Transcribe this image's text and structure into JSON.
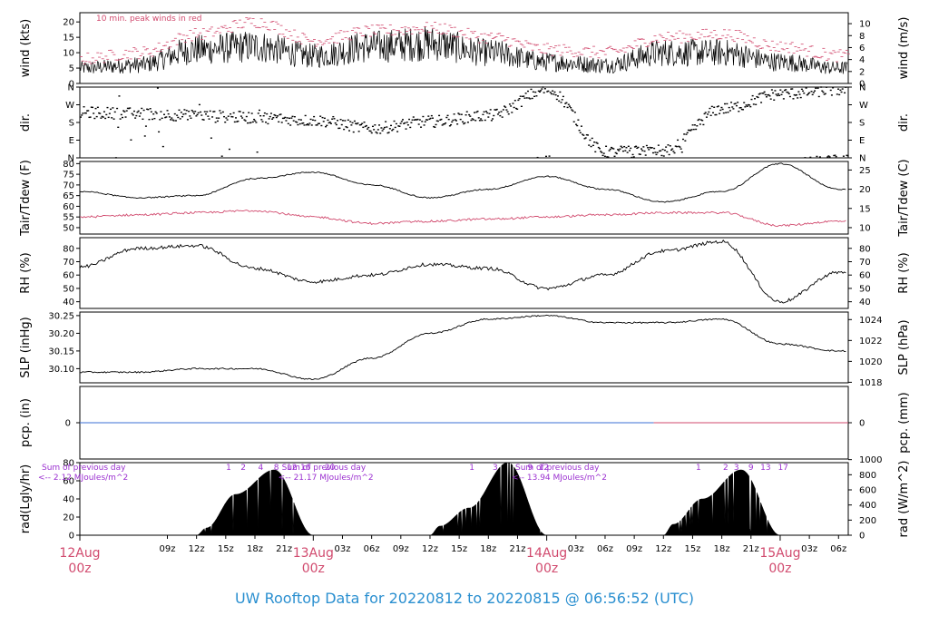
{
  "footer_title": "UW Rooftop Data for 20220812  to  20220815 @ 06:56:52  (UTC)",
  "colors": {
    "peak": "#d14a6e",
    "dew": "#d14a6e",
    "pcp": "#3b6fd6",
    "footer": "#2a8fd0",
    "annot": "#9b30d0"
  },
  "chart_data": [
    {
      "type": "line",
      "panel": "wind",
      "ylabel_left": "wind (kts)",
      "ylabel_right": "wind (m/s)",
      "annotation": "10 min. peak winds in red",
      "ylim": [
        0,
        23
      ],
      "yticks_left": [
        0,
        5,
        10,
        15,
        20
      ],
      "yticks_right": [
        0,
        2,
        4,
        6,
        8,
        10
      ],
      "x_hours": [
        0,
        6,
        12,
        18,
        24,
        30,
        36,
        42,
        48,
        54,
        60,
        66,
        72,
        78
      ],
      "series": [
        {
          "role": "wind",
          "values": [
            5,
            6,
            11,
            12,
            9,
            12,
            13,
            10,
            7,
            6,
            10,
            10,
            7,
            5
          ]
        },
        {
          "role": "peak",
          "values": [
            8,
            10,
            16,
            20,
            14,
            17,
            18,
            15,
            11,
            10,
            15,
            16,
            12,
            9
          ]
        }
      ]
    },
    {
      "type": "scatter",
      "panel": "dir",
      "ylabel_left": "dir.",
      "ylabel_right": "dir.",
      "ytick_labels": [
        "N",
        "E",
        "S",
        "W",
        "N"
      ],
      "x_hours": [
        0,
        6,
        12,
        18,
        24,
        30,
        36,
        42,
        48,
        54,
        60,
        66,
        72,
        78
      ],
      "values": [
        230,
        225,
        215,
        205,
        190,
        150,
        185,
        215,
        345,
        30,
        35,
        250,
        325,
        345
      ]
    },
    {
      "type": "line",
      "panel": "temp",
      "ylabel_left": "Tair/Tdew (F)",
      "ylabel_right": "Tair/Tdew (C)",
      "ylim": [
        47,
        81
      ],
      "yticks_left": [
        50,
        55,
        60,
        65,
        70,
        75,
        80
      ],
      "yticks_right": [
        10,
        15,
        20,
        25
      ],
      "x_hours": [
        0,
        6,
        12,
        18,
        24,
        30,
        36,
        42,
        48,
        54,
        60,
        66,
        72,
        78
      ],
      "series": [
        {
          "role": "tair",
          "values": [
            67,
            64,
            65,
            73,
            76,
            70,
            64,
            68,
            74,
            68,
            62,
            67,
            80,
            68
          ]
        },
        {
          "role": "tdew",
          "values": [
            55,
            56,
            57,
            58,
            55,
            52,
            53,
            54,
            55,
            56,
            57,
            57,
            51,
            53
          ]
        }
      ]
    },
    {
      "type": "line",
      "panel": "rh",
      "ylabel_left": "RH (%)",
      "ylabel_right": "RH (%)",
      "ylim": [
        35,
        88
      ],
      "yticks_left": [
        40,
        50,
        60,
        70,
        80
      ],
      "yticks_right": [
        40,
        50,
        60,
        70,
        80
      ],
      "x_hours": [
        0,
        6,
        12,
        18,
        24,
        30,
        36,
        42,
        48,
        54,
        60,
        66,
        72,
        78
      ],
      "values": [
        66,
        80,
        82,
        65,
        55,
        60,
        68,
        65,
        50,
        60,
        78,
        85,
        40,
        62
      ]
    },
    {
      "type": "line",
      "panel": "slp",
      "ylabel_left": "SLP (inHg)",
      "ylabel_right": "SLP (hPa)",
      "ylim": [
        30.06,
        30.26
      ],
      "yticks_left": [
        30.1,
        30.15,
        30.2,
        30.25
      ],
      "yticks_right": [
        1018,
        1020,
        1022,
        1024
      ],
      "x_hours": [
        0,
        6,
        12,
        18,
        24,
        30,
        36,
        42,
        48,
        54,
        60,
        66,
        72,
        78
      ],
      "values": [
        30.09,
        30.09,
        30.1,
        30.1,
        30.07,
        30.13,
        30.2,
        30.24,
        30.25,
        30.23,
        30.23,
        30.24,
        30.17,
        30.15
      ]
    },
    {
      "type": "line",
      "panel": "pcp",
      "ylabel_left": "pcp. (in)",
      "ylabel_right": "pcp. (mm)",
      "yticks_left": [
        0
      ],
      "yticks_right": [
        0
      ],
      "x_hours": [
        0,
        78
      ],
      "values": [
        0,
        0
      ]
    },
    {
      "type": "area",
      "panel": "rad",
      "ylabel_left": "rad(Lgly/hr)",
      "ylabel_right": "rad (W/m^2)",
      "ylim": [
        0,
        80
      ],
      "yticks_left": [
        0,
        20,
        40,
        60,
        80
      ],
      "yticks_right": [
        0,
        200,
        400,
        600,
        800,
        1000
      ],
      "x_hours": [
        0,
        6,
        12,
        13,
        16,
        20,
        24,
        30,
        36,
        37,
        40,
        44,
        48,
        54,
        60,
        61,
        64,
        68,
        72,
        78
      ],
      "values": [
        0,
        0,
        0,
        8,
        45,
        72,
        0,
        0,
        0,
        10,
        30,
        80,
        0,
        0,
        0,
        12,
        40,
        72,
        0,
        0
      ],
      "hour_labels": [
        {
          "text": "1",
          "hour": 15.3
        },
        {
          "text": "2",
          "hour": 16.8
        },
        {
          "text": "4",
          "hour": 18.6
        },
        {
          "text": "8",
          "hour": 20.2
        },
        {
          "text": "12",
          "hour": 21.8
        },
        {
          "text": "16",
          "hour": 23.2
        },
        {
          "text": "20",
          "hour": 25.7
        },
        {
          "text": "1",
          "hour": 40.3
        },
        {
          "text": "3",
          "hour": 42.7
        },
        {
          "text": "9",
          "hour": 46.3
        },
        {
          "text": "12",
          "hour": 47.7
        },
        {
          "text": "1",
          "hour": 63.6
        },
        {
          "text": "2",
          "hour": 66.4
        },
        {
          "text": "3",
          "hour": 67.5
        },
        {
          "text": "9",
          "hour": 69.0
        },
        {
          "text": "13",
          "hour": 70.5
        },
        {
          "text": "17",
          "hour": 72.3
        }
      ],
      "daily_sums": [
        {
          "line1": "Sum of previous day",
          "line2": "<-- 2.12 MJoules/m^2",
          "hour": -0.5
        },
        {
          "line1": "Sum of previous day",
          "line2": "<-- 21.17 MJoules/m^2",
          "hour": 24.5
        },
        {
          "line1": "Sum of previous day",
          "line2": "<-- 13.94 MJoules/m^2",
          "hour": 48.5
        }
      ]
    }
  ],
  "x_axis": {
    "ticks": [
      {
        "label": "09z",
        "hour": 9
      },
      {
        "label": "12z",
        "hour": 12
      },
      {
        "label": "15z",
        "hour": 15
      },
      {
        "label": "18z",
        "hour": 18
      },
      {
        "label": "21z",
        "hour": 21
      },
      {
        "label": "03z",
        "hour": 27
      },
      {
        "label": "06z",
        "hour": 30
      },
      {
        "label": "09z",
        "hour": 33
      },
      {
        "label": "12z",
        "hour": 36
      },
      {
        "label": "15z",
        "hour": 39
      },
      {
        "label": "18z",
        "hour": 42
      },
      {
        "label": "21z",
        "hour": 45
      },
      {
        "label": "03z",
        "hour": 51
      },
      {
        "label": "06z",
        "hour": 54
      },
      {
        "label": "09z",
        "hour": 57
      },
      {
        "label": "12z",
        "hour": 60
      },
      {
        "label": "15z",
        "hour": 63
      },
      {
        "label": "18z",
        "hour": 66
      },
      {
        "label": "21z",
        "hour": 69
      },
      {
        "label": "03z",
        "hour": 75
      },
      {
        "label": "06z",
        "hour": 78
      }
    ],
    "day_labels": [
      {
        "date": "12Aug",
        "time": "00z",
        "hour": 0
      },
      {
        "date": "13Aug",
        "time": "00z",
        "hour": 24
      },
      {
        "date": "14Aug",
        "time": "00z",
        "hour": 48
      },
      {
        "date": "15Aug",
        "time": "00z",
        "hour": 72
      }
    ]
  }
}
